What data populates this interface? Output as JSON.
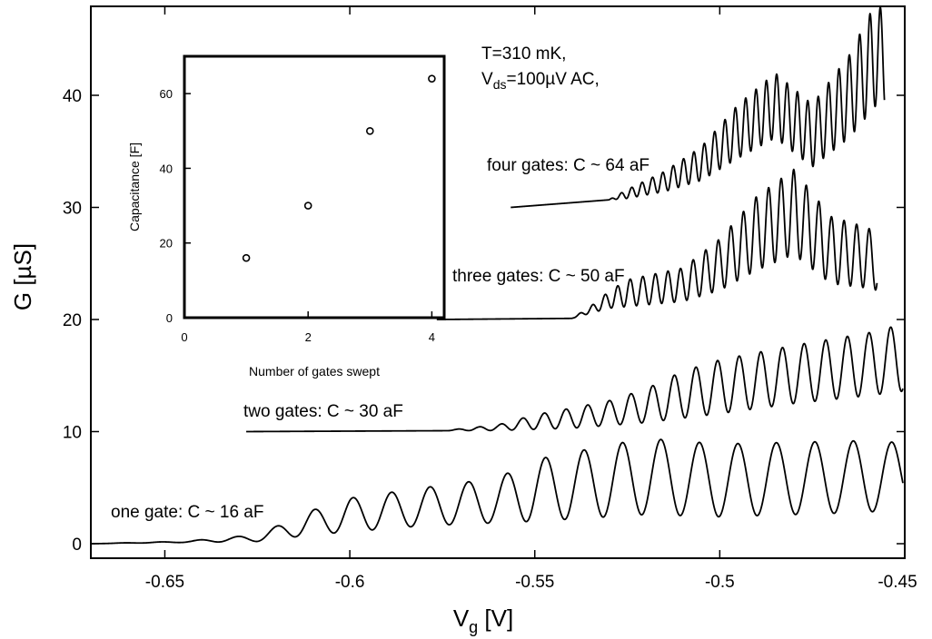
{
  "chart_data": [
    {
      "type": "line",
      "title": "",
      "xlabel": "V",
      "xlabel_sub": "g",
      "xlabel_unit": " [V]",
      "ylabel": "G [µS]",
      "xlim": [
        -0.67,
        -0.45
      ],
      "ylim": [
        -2,
        47
      ],
      "x_ticks": [
        -0.65,
        -0.6,
        -0.55,
        -0.5,
        -0.45
      ],
      "x_tick_labels": [
        "-0.65",
        "-0.6",
        "-0.55",
        "-0.5",
        "-0.45"
      ],
      "y_ticks": [
        0,
        10,
        20,
        30,
        40
      ],
      "y_tick_labels": [
        "0",
        "10",
        "20",
        "30",
        "40"
      ],
      "grid": false,
      "annotations": {
        "temp": "T=310 mK,",
        "vds_main": "V",
        "vds_sub": "ds",
        "vds_rest": "=100µV AC,",
        "four": "four gates: C ~ 64 aF",
        "three": "three gates: C ~ 50 aF",
        "two": "two gates: C ~ 30 aF",
        "one": "one gate: C ~ 16 aF"
      },
      "series": [
        {
          "label": "one gate: C ~ 16 aF",
          "x_start": -0.67,
          "x_end": -0.4505,
          "baseline": 0.0,
          "period": 0.0104,
          "phase": -0.6095,
          "amplitude_points": [
            [
              -0.67,
              0.0
            ],
            [
              -0.645,
              0.1
            ],
            [
              -0.625,
              0.6
            ],
            [
              -0.61,
              2.2
            ],
            [
              -0.6,
              3.0
            ],
            [
              -0.58,
              3.4
            ],
            [
              -0.56,
              4.0
            ],
            [
              -0.55,
              5.5
            ],
            [
              -0.53,
              6.4
            ],
            [
              -0.52,
              6.8
            ],
            [
              -0.5,
              6.5
            ],
            [
              -0.46,
              6.4
            ],
            [
              -0.4505,
              5.8
            ]
          ],
          "offset_points": [
            [
              -0.67,
              0.0
            ],
            [
              -0.625,
              0.2
            ],
            [
              -0.61,
              0.8
            ],
            [
              -0.58,
              1.6
            ],
            [
              -0.55,
              2.0
            ],
            [
              -0.52,
              2.6
            ],
            [
              -0.5,
              2.4
            ],
            [
              -0.46,
              2.8
            ],
            [
              -0.4505,
              3.2
            ]
          ]
        },
        {
          "label": "two gates: C ~ 30 aF",
          "x_start": -0.628,
          "x_end": -0.4505,
          "baseline": 10.0,
          "period": 0.00585,
          "phase": -0.5474,
          "amplitude_points": [
            [
              -0.628,
              0.0
            ],
            [
              -0.575,
              0.0
            ],
            [
              -0.56,
              0.5
            ],
            [
              -0.55,
              1.3
            ],
            [
              -0.54,
              1.8
            ],
            [
              -0.53,
              2.2
            ],
            [
              -0.52,
              3.0
            ],
            [
              -0.51,
              4.2
            ],
            [
              -0.5,
              4.8
            ],
            [
              -0.48,
              5.2
            ],
            [
              -0.46,
              5.6
            ],
            [
              -0.4505,
              6.0
            ]
          ],
          "offset_points": [
            [
              -0.628,
              0.0
            ],
            [
              -0.56,
              0.1
            ],
            [
              -0.54,
              0.3
            ],
            [
              -0.52,
              0.8
            ],
            [
              -0.5,
              1.6
            ],
            [
              -0.48,
              2.5
            ],
            [
              -0.46,
              3.2
            ],
            [
              -0.4505,
              3.6
            ]
          ]
        },
        {
          "label": "three gates: C ~ 50 aF",
          "x_start": -0.5765,
          "x_end": -0.4575,
          "baseline": 20.0,
          "period": 0.0034,
          "phase": -0.5276,
          "amplitude_points": [
            [
              -0.5765,
              0.0
            ],
            [
              -0.54,
              0.0
            ],
            [
              -0.535,
              0.6
            ],
            [
              -0.525,
              2.4
            ],
            [
              -0.51,
              3.0
            ],
            [
              -0.5,
              4.6
            ],
            [
              -0.49,
              6.6
            ],
            [
              -0.48,
              7.6
            ],
            [
              -0.47,
              6.0
            ],
            [
              -0.46,
              5.4
            ],
            [
              -0.4575,
              5.0
            ]
          ],
          "offset_points": [
            [
              -0.5765,
              0.0
            ],
            [
              -0.54,
              0.1
            ],
            [
              -0.53,
              1.0
            ],
            [
              -0.51,
              1.6
            ],
            [
              -0.5,
              2.6
            ],
            [
              -0.49,
              4.4
            ],
            [
              -0.48,
              5.8
            ],
            [
              -0.47,
              3.2
            ],
            [
              -0.46,
              2.8
            ],
            [
              -0.4575,
              2.6
            ]
          ]
        },
        {
          "label": "four gates: C ~ 64 aF",
          "x_start": -0.5565,
          "x_end": -0.4555,
          "baseline": 30.0,
          "period": 0.0028,
          "phase": -0.521,
          "amplitude_points": [
            [
              -0.5565,
              0.0
            ],
            [
              -0.53,
              0.0
            ],
            [
              -0.525,
              0.8
            ],
            [
              -0.515,
              1.8
            ],
            [
              -0.505,
              3.0
            ],
            [
              -0.495,
              4.8
            ],
            [
              -0.485,
              5.8
            ],
            [
              -0.475,
              5.6
            ],
            [
              -0.465,
              7.4
            ],
            [
              -0.458,
              9.2
            ],
            [
              -0.4555,
              9.0
            ]
          ],
          "offset_points": [
            [
              -0.5565,
              0.0
            ],
            [
              -0.525,
              0.8
            ],
            [
              -0.515,
              1.4
            ],
            [
              -0.505,
              2.4
            ],
            [
              -0.495,
              4.4
            ],
            [
              -0.485,
              6.2
            ],
            [
              -0.475,
              3.6
            ],
            [
              -0.465,
              6.2
            ],
            [
              -0.458,
              9.0
            ],
            [
              -0.4555,
              8.6
            ]
          ]
        }
      ]
    },
    {
      "type": "scatter",
      "title": "",
      "xlabel": "Number of gates swept",
      "ylabel": "Capacitance [F]",
      "xlim": [
        0,
        4.2
      ],
      "ylim": [
        0,
        70
      ],
      "x_ticks": [
        0,
        2,
        4
      ],
      "x_tick_labels": [
        "0",
        "2",
        "4"
      ],
      "y_ticks": [
        0,
        20,
        40,
        60
      ],
      "y_tick_labels": [
        "0",
        "20",
        "40",
        "60"
      ],
      "grid": false,
      "x": [
        1,
        2,
        3,
        4
      ],
      "y": [
        16,
        30,
        50,
        64
      ]
    }
  ]
}
